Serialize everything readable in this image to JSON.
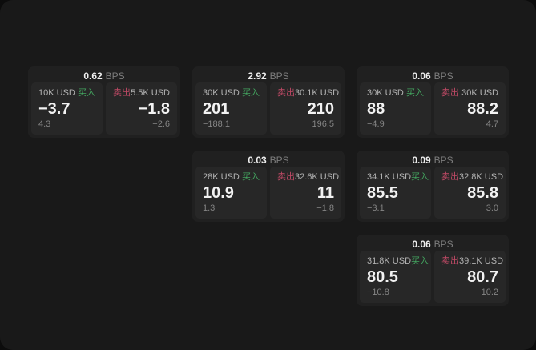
{
  "labels": {
    "bps_unit": "BPS",
    "buy": "买入",
    "sell": "卖出"
  },
  "colors": {
    "backdrop": "#0c0c0c",
    "page_bg": "#191919",
    "card_bg": "#202020",
    "panel_bg": "#272727",
    "buy_green": "#43a45f",
    "sell_rose": "#c04a66",
    "price_white": "#f2f2f2",
    "muted_gray": "#858585"
  },
  "cards": [
    {
      "col": 1,
      "row": 1,
      "bps": "0.62",
      "buy": {
        "amount": "10K USD",
        "price": "−3.7",
        "delta": "4.3"
      },
      "sell": {
        "amount": "5.5K USD",
        "price": "−1.8",
        "delta": "−2.6"
      }
    },
    {
      "col": 2,
      "row": 1,
      "bps": "2.92",
      "buy": {
        "amount": "30K USD",
        "price": "201",
        "delta": "−188.1"
      },
      "sell": {
        "amount": "30.1K USD",
        "price": "210",
        "delta": "196.5"
      }
    },
    {
      "col": 3,
      "row": 1,
      "bps": "0.06",
      "buy": {
        "amount": "30K USD",
        "price": "88",
        "delta": "−4.9"
      },
      "sell": {
        "amount": "30K USD",
        "price": "88.2",
        "delta": "4.7"
      }
    },
    {
      "col": 2,
      "row": 2,
      "bps": "0.03",
      "buy": {
        "amount": "28K USD",
        "price": "10.9",
        "delta": "1.3"
      },
      "sell": {
        "amount": "32.6K USD",
        "price": "11",
        "delta": "−1.8"
      }
    },
    {
      "col": 3,
      "row": 2,
      "bps": "0.09",
      "buy": {
        "amount": "34.1K USD",
        "price": "85.5",
        "delta": "−3.1"
      },
      "sell": {
        "amount": "32.8K USD",
        "price": "85.8",
        "delta": "3.0"
      }
    },
    {
      "col": 3,
      "row": 3,
      "bps": "0.06",
      "buy": {
        "amount": "31.8K USD",
        "price": "80.5",
        "delta": "−10.8"
      },
      "sell": {
        "amount": "39.1K USD",
        "price": "80.7",
        "delta": "10.2"
      }
    }
  ]
}
